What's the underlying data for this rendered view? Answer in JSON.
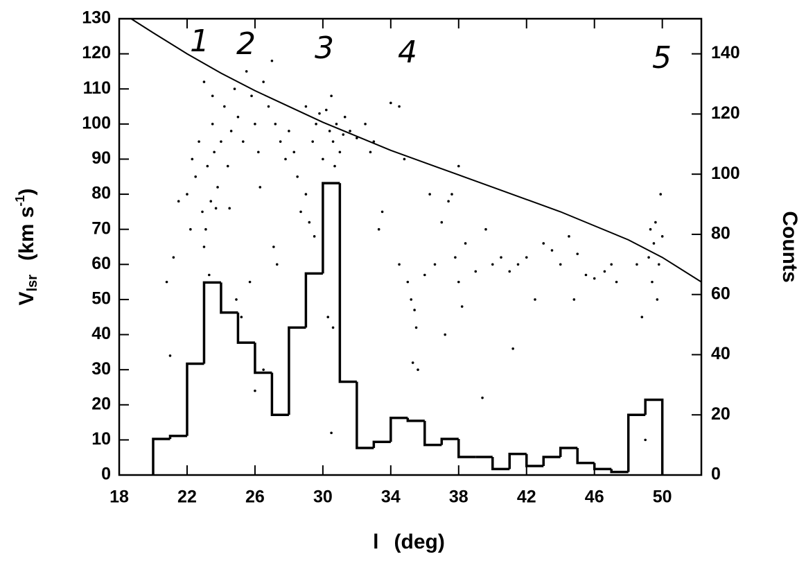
{
  "chart_data": {
    "type": "scatter-histogram",
    "xlabel": [
      "l",
      "(deg)"
    ],
    "ylabel": [
      "V",
      "lsr",
      "(km s",
      "-1",
      ")"
    ],
    "y2label": "Counts",
    "annotations": [
      "1",
      "2",
      "3",
      "4",
      "5"
    ],
    "xlim": [
      18,
      52.3
    ],
    "ylim": [
      0,
      130
    ],
    "y2lim": [
      0,
      151.67
    ],
    "xticks": [
      18,
      22,
      26,
      30,
      34,
      38,
      42,
      46,
      50
    ],
    "yticks": [
      0,
      10,
      20,
      30,
      40,
      50,
      60,
      70,
      80,
      90,
      100,
      110,
      120,
      130
    ],
    "y2ticks": [
      0,
      20,
      40,
      60,
      80,
      100,
      120,
      140
    ],
    "color": "#000000",
    "scatter": {
      "x": [
        22.0,
        22.3,
        22.5,
        22.7,
        22.9,
        23.0,
        23.1,
        23.2,
        23.4,
        23.5,
        23.6,
        23.7,
        23.8,
        24.0,
        24.2,
        24.4,
        24.6,
        24.8,
        23.0,
        23.5,
        24.5,
        21.5,
        21.2,
        20.8,
        21.0,
        22.2,
        23.3,
        25.0,
        25.3,
        25.5,
        25.8,
        26.0,
        26.2,
        26.5,
        26.8,
        27.0,
        27.2,
        27.5,
        27.8,
        25.2,
        25.7,
        24.9,
        26.3,
        27.1,
        27.3,
        26.0,
        26.5,
        28.0,
        28.3,
        28.5,
        28.7,
        29.0,
        29.2,
        29.4,
        29.6,
        29.8,
        30.0,
        30.2,
        30.4,
        30.5,
        30.6,
        30.7,
        30.8,
        31.0,
        31.2,
        29.5,
        29.0,
        30.3,
        30.6,
        30.5,
        31.3,
        31.6,
        32.0,
        32.5,
        33.0,
        33.3,
        32.8,
        33.5,
        34.0,
        34.5,
        34.8,
        35.0,
        35.2,
        35.4,
        35.5,
        35.3,
        35.6,
        34.5,
        36.0,
        36.3,
        36.6,
        37.0,
        37.4,
        37.6,
        37.8,
        37.2,
        38.0,
        38.2,
        38.4,
        38.0,
        39.0,
        39.4,
        39.6,
        40.0,
        40.5,
        41.0,
        41.2,
        41.5,
        42.0,
        42.5,
        43.0,
        43.5,
        44.0,
        44.5,
        44.8,
        45.0,
        45.5,
        46.0,
        46.6,
        47.0,
        47.3,
        48.5,
        48.8,
        49.0,
        49.2,
        49.3,
        49.4,
        49.5,
        49.6,
        49.8,
        49.9,
        50.0,
        49.7
      ],
      "y": [
        80,
        90,
        85,
        95,
        75,
        65,
        70,
        88,
        78,
        100,
        92,
        76,
        82,
        95,
        105,
        88,
        98,
        110,
        112,
        108,
        76,
        78,
        62,
        55,
        34,
        70,
        57,
        102,
        95,
        115,
        108,
        100,
        92,
        112,
        105,
        118,
        100,
        95,
        90,
        45,
        55,
        50,
        82,
        65,
        60,
        24,
        30,
        98,
        92,
        85,
        75,
        80,
        72,
        95,
        100,
        103,
        90,
        104,
        98,
        108,
        95,
        88,
        100,
        92,
        97,
        68,
        105,
        45,
        42,
        12,
        102,
        98,
        96,
        100,
        95,
        70,
        92,
        75,
        106,
        105,
        90,
        55,
        50,
        47,
        42,
        32,
        30,
        60,
        57,
        80,
        60,
        72,
        78,
        80,
        62,
        40,
        55,
        48,
        66,
        88,
        58,
        22,
        70,
        60,
        62,
        58,
        36,
        60,
        62,
        50,
        66,
        64,
        60,
        68,
        50,
        63,
        57,
        56,
        58,
        60,
        55,
        60,
        45,
        10,
        62,
        70,
        55,
        66,
        72,
        60,
        80,
        68,
        50
      ]
    },
    "curve": {
      "x": [
        18.7,
        20,
        22,
        24,
        26,
        28,
        30,
        32,
        34,
        36,
        38,
        40,
        42,
        44,
        46,
        48,
        50,
        52.3
      ],
      "y": [
        130,
        126,
        120,
        114.5,
        109.5,
        105,
        100.5,
        96.5,
        92.5,
        89,
        85.5,
        82,
        78.5,
        75,
        71,
        67,
        62,
        55
      ]
    },
    "histogram": {
      "bins": [
        20,
        21,
        22,
        23,
        24,
        25,
        26,
        27,
        28,
        29,
        30,
        31,
        32,
        33,
        34,
        35,
        36,
        37,
        38,
        39,
        40,
        41,
        42,
        43,
        44,
        45,
        46,
        47,
        48,
        49,
        50
      ],
      "counts": [
        12,
        13,
        37,
        64,
        54,
        44,
        34,
        20,
        49,
        67,
        97,
        31,
        9,
        11,
        19,
        18,
        10,
        12,
        6,
        6,
        2,
        7,
        3,
        6,
        9,
        4,
        2,
        1,
        20,
        25
      ],
      "axis": "y2"
    }
  }
}
